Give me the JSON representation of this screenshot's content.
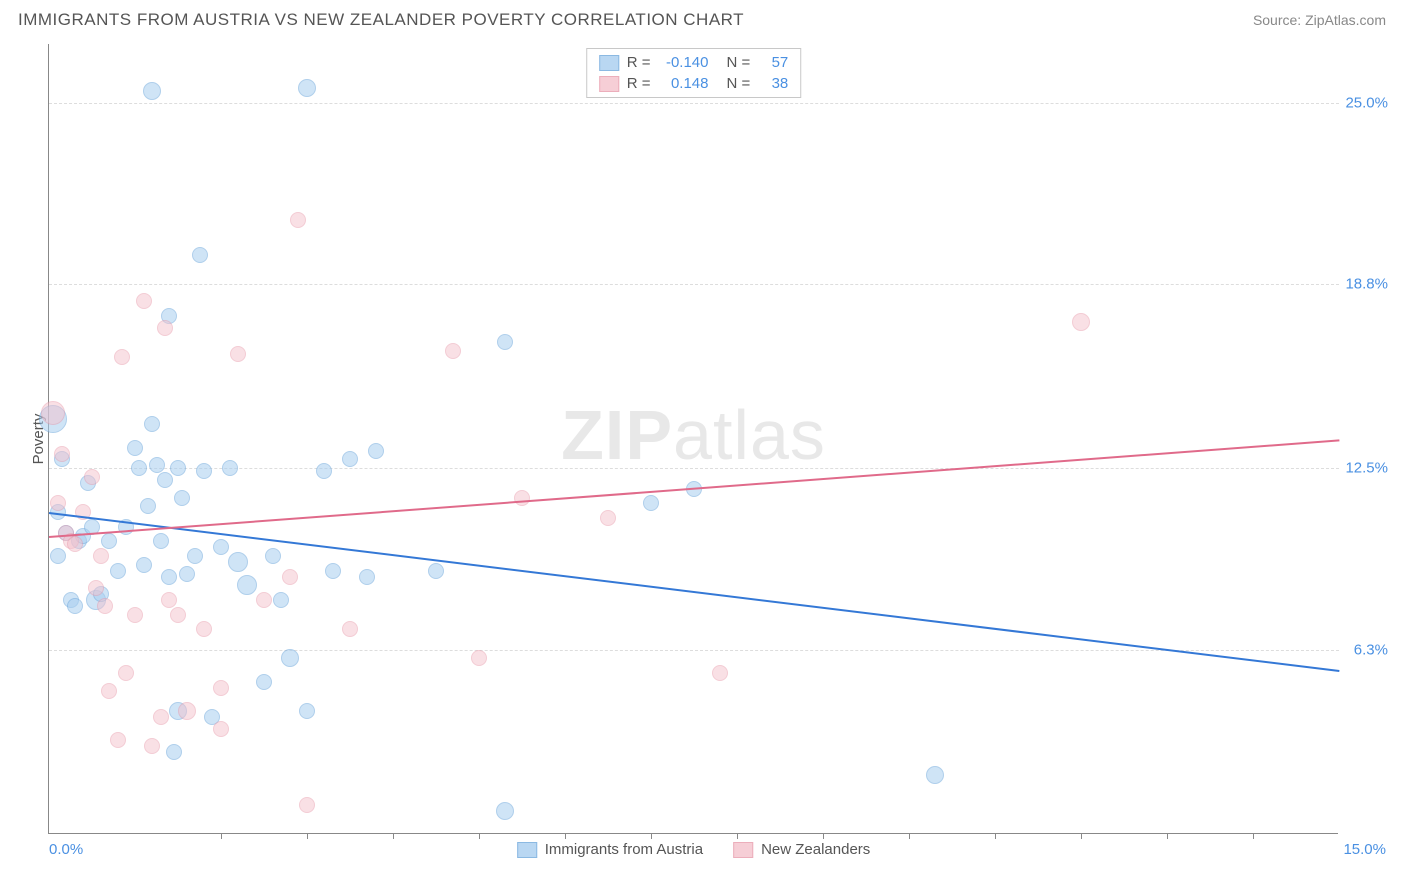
{
  "header": {
    "title": "IMMIGRANTS FROM AUSTRIA VS NEW ZEALANDER POVERTY CORRELATION CHART",
    "source_prefix": "Source: ",
    "source_name": "ZipAtlas.com"
  },
  "chart": {
    "type": "scatter",
    "watermark_bold": "ZIP",
    "watermark_rest": "atlas",
    "y_axis_title": "Poverty",
    "background_color": "#ffffff",
    "grid_color": "#dddddd",
    "axis_color": "#888888",
    "xlim": [
      0,
      15
    ],
    "ylim": [
      0,
      27
    ],
    "x_labels": [
      {
        "value": 0,
        "text": "0.0%",
        "color": "#4a90e2"
      },
      {
        "value": 15,
        "text": "15.0%",
        "color": "#4a90e2"
      }
    ],
    "x_ticks": [
      2,
      3,
      4,
      5,
      6,
      7,
      8,
      9,
      10,
      11,
      12,
      13,
      14
    ],
    "y_gridlines": [
      {
        "value": 6.3,
        "label": "6.3%",
        "color": "#4a90e2"
      },
      {
        "value": 12.5,
        "label": "12.5%",
        "color": "#4a90e2"
      },
      {
        "value": 18.8,
        "label": "18.8%",
        "color": "#4a90e2"
      },
      {
        "value": 25.0,
        "label": "25.0%",
        "color": "#4a90e2"
      }
    ],
    "series": [
      {
        "name": "Immigrants from Austria",
        "fill_color": "#a8cef0",
        "stroke_color": "#6fa8dc",
        "fill_opacity": 0.55,
        "trend": {
          "x1": 0,
          "y1": 11.0,
          "x2": 15,
          "y2": 5.6,
          "color": "#3478d6",
          "width": 2
        },
        "stats": {
          "R": "-0.140",
          "N": "57"
        },
        "points": [
          {
            "x": 0.05,
            "y": 14.2,
            "r": 14
          },
          {
            "x": 0.1,
            "y": 11.0,
            "r": 8
          },
          {
            "x": 0.1,
            "y": 9.5,
            "r": 8
          },
          {
            "x": 0.15,
            "y": 12.8,
            "r": 8
          },
          {
            "x": 0.2,
            "y": 10.3,
            "r": 8
          },
          {
            "x": 0.25,
            "y": 8.0,
            "r": 8
          },
          {
            "x": 0.3,
            "y": 7.8,
            "r": 8
          },
          {
            "x": 0.35,
            "y": 10.0,
            "r": 8
          },
          {
            "x": 0.4,
            "y": 10.2,
            "r": 8
          },
          {
            "x": 0.45,
            "y": 12.0,
            "r": 8
          },
          {
            "x": 0.5,
            "y": 10.5,
            "r": 8
          },
          {
            "x": 0.55,
            "y": 8.0,
            "r": 10
          },
          {
            "x": 0.6,
            "y": 8.2,
            "r": 8
          },
          {
            "x": 0.7,
            "y": 10.0,
            "r": 8
          },
          {
            "x": 0.8,
            "y": 9.0,
            "r": 8
          },
          {
            "x": 0.9,
            "y": 10.5,
            "r": 8
          },
          {
            "x": 1.0,
            "y": 13.2,
            "r": 8
          },
          {
            "x": 1.05,
            "y": 12.5,
            "r": 8
          },
          {
            "x": 1.1,
            "y": 9.2,
            "r": 8
          },
          {
            "x": 1.15,
            "y": 11.2,
            "r": 8
          },
          {
            "x": 1.2,
            "y": 25.4,
            "r": 9
          },
          {
            "x": 1.2,
            "y": 14.0,
            "r": 8
          },
          {
            "x": 1.25,
            "y": 12.6,
            "r": 8
          },
          {
            "x": 1.3,
            "y": 10.0,
            "r": 8
          },
          {
            "x": 1.35,
            "y": 12.1,
            "r": 8
          },
          {
            "x": 1.4,
            "y": 8.8,
            "r": 8
          },
          {
            "x": 1.4,
            "y": 17.7,
            "r": 8
          },
          {
            "x": 1.45,
            "y": 2.8,
            "r": 8
          },
          {
            "x": 1.5,
            "y": 12.5,
            "r": 8
          },
          {
            "x": 1.55,
            "y": 11.5,
            "r": 8
          },
          {
            "x": 1.6,
            "y": 8.9,
            "r": 8
          },
          {
            "x": 1.7,
            "y": 9.5,
            "r": 8
          },
          {
            "x": 1.75,
            "y": 19.8,
            "r": 8
          },
          {
            "x": 1.8,
            "y": 12.4,
            "r": 8
          },
          {
            "x": 1.9,
            "y": 4.0,
            "r": 8
          },
          {
            "x": 2.0,
            "y": 9.8,
            "r": 8
          },
          {
            "x": 2.1,
            "y": 12.5,
            "r": 8
          },
          {
            "x": 2.2,
            "y": 9.3,
            "r": 10
          },
          {
            "x": 2.3,
            "y": 8.5,
            "r": 10
          },
          {
            "x": 2.5,
            "y": 5.2,
            "r": 8
          },
          {
            "x": 2.6,
            "y": 9.5,
            "r": 8
          },
          {
            "x": 2.7,
            "y": 8.0,
            "r": 8
          },
          {
            "x": 2.8,
            "y": 6.0,
            "r": 9
          },
          {
            "x": 3.0,
            "y": 4.2,
            "r": 8
          },
          {
            "x": 3.0,
            "y": 25.5,
            "r": 9
          },
          {
            "x": 3.2,
            "y": 12.4,
            "r": 8
          },
          {
            "x": 3.3,
            "y": 9.0,
            "r": 8
          },
          {
            "x": 3.5,
            "y": 12.8,
            "r": 8
          },
          {
            "x": 3.7,
            "y": 8.8,
            "r": 8
          },
          {
            "x": 3.8,
            "y": 13.1,
            "r": 8
          },
          {
            "x": 4.5,
            "y": 9.0,
            "r": 8
          },
          {
            "x": 5.3,
            "y": 0.8,
            "r": 9
          },
          {
            "x": 5.3,
            "y": 16.8,
            "r": 8
          },
          {
            "x": 7.0,
            "y": 11.3,
            "r": 8
          },
          {
            "x": 7.5,
            "y": 11.8,
            "r": 8
          },
          {
            "x": 10.3,
            "y": 2.0,
            "r": 9
          },
          {
            "x": 1.5,
            "y": 4.2,
            "r": 9
          }
        ]
      },
      {
        "name": "New Zealanders",
        "fill_color": "#f4c2cd",
        "stroke_color": "#e89aab",
        "fill_opacity": 0.5,
        "trend": {
          "x1": 0,
          "y1": 10.2,
          "x2": 15,
          "y2": 13.5,
          "color": "#e06a8a",
          "width": 2
        },
        "stats": {
          "R": "0.148",
          "N": "38"
        },
        "points": [
          {
            "x": 0.05,
            "y": 14.4,
            "r": 12
          },
          {
            "x": 0.1,
            "y": 11.3,
            "r": 8
          },
          {
            "x": 0.15,
            "y": 13.0,
            "r": 8
          },
          {
            "x": 0.2,
            "y": 10.3,
            "r": 8
          },
          {
            "x": 0.25,
            "y": 10.0,
            "r": 8
          },
          {
            "x": 0.3,
            "y": 9.9,
            "r": 8
          },
          {
            "x": 0.4,
            "y": 11.0,
            "r": 8
          },
          {
            "x": 0.5,
            "y": 12.2,
            "r": 8
          },
          {
            "x": 0.55,
            "y": 8.4,
            "r": 8
          },
          {
            "x": 0.6,
            "y": 9.5,
            "r": 8
          },
          {
            "x": 0.65,
            "y": 7.8,
            "r": 8
          },
          {
            "x": 0.7,
            "y": 4.9,
            "r": 8
          },
          {
            "x": 0.8,
            "y": 3.2,
            "r": 8
          },
          {
            "x": 0.85,
            "y": 16.3,
            "r": 8
          },
          {
            "x": 0.9,
            "y": 5.5,
            "r": 8
          },
          {
            "x": 1.0,
            "y": 7.5,
            "r": 8
          },
          {
            "x": 1.1,
            "y": 18.2,
            "r": 8
          },
          {
            "x": 1.2,
            "y": 3.0,
            "r": 8
          },
          {
            "x": 1.3,
            "y": 4.0,
            "r": 8
          },
          {
            "x": 1.35,
            "y": 17.3,
            "r": 8
          },
          {
            "x": 1.4,
            "y": 8.0,
            "r": 8
          },
          {
            "x": 1.5,
            "y": 7.5,
            "r": 8
          },
          {
            "x": 1.6,
            "y": 4.2,
            "r": 9
          },
          {
            "x": 1.8,
            "y": 7.0,
            "r": 8
          },
          {
            "x": 2.0,
            "y": 3.6,
            "r": 8
          },
          {
            "x": 2.0,
            "y": 5.0,
            "r": 8
          },
          {
            "x": 2.2,
            "y": 16.4,
            "r": 8
          },
          {
            "x": 2.5,
            "y": 8.0,
            "r": 8
          },
          {
            "x": 2.8,
            "y": 8.8,
            "r": 8
          },
          {
            "x": 2.9,
            "y": 21.0,
            "r": 8
          },
          {
            "x": 3.0,
            "y": 1.0,
            "r": 8
          },
          {
            "x": 3.5,
            "y": 7.0,
            "r": 8
          },
          {
            "x": 4.7,
            "y": 16.5,
            "r": 8
          },
          {
            "x": 5.0,
            "y": 6.0,
            "r": 8
          },
          {
            "x": 5.5,
            "y": 11.5,
            "r": 8
          },
          {
            "x": 6.5,
            "y": 10.8,
            "r": 8
          },
          {
            "x": 7.8,
            "y": 5.5,
            "r": 8
          },
          {
            "x": 12.0,
            "y": 17.5,
            "r": 9
          }
        ]
      }
    ],
    "stats_legend_labels": {
      "R_label": "R =",
      "N_label": "N ="
    }
  }
}
